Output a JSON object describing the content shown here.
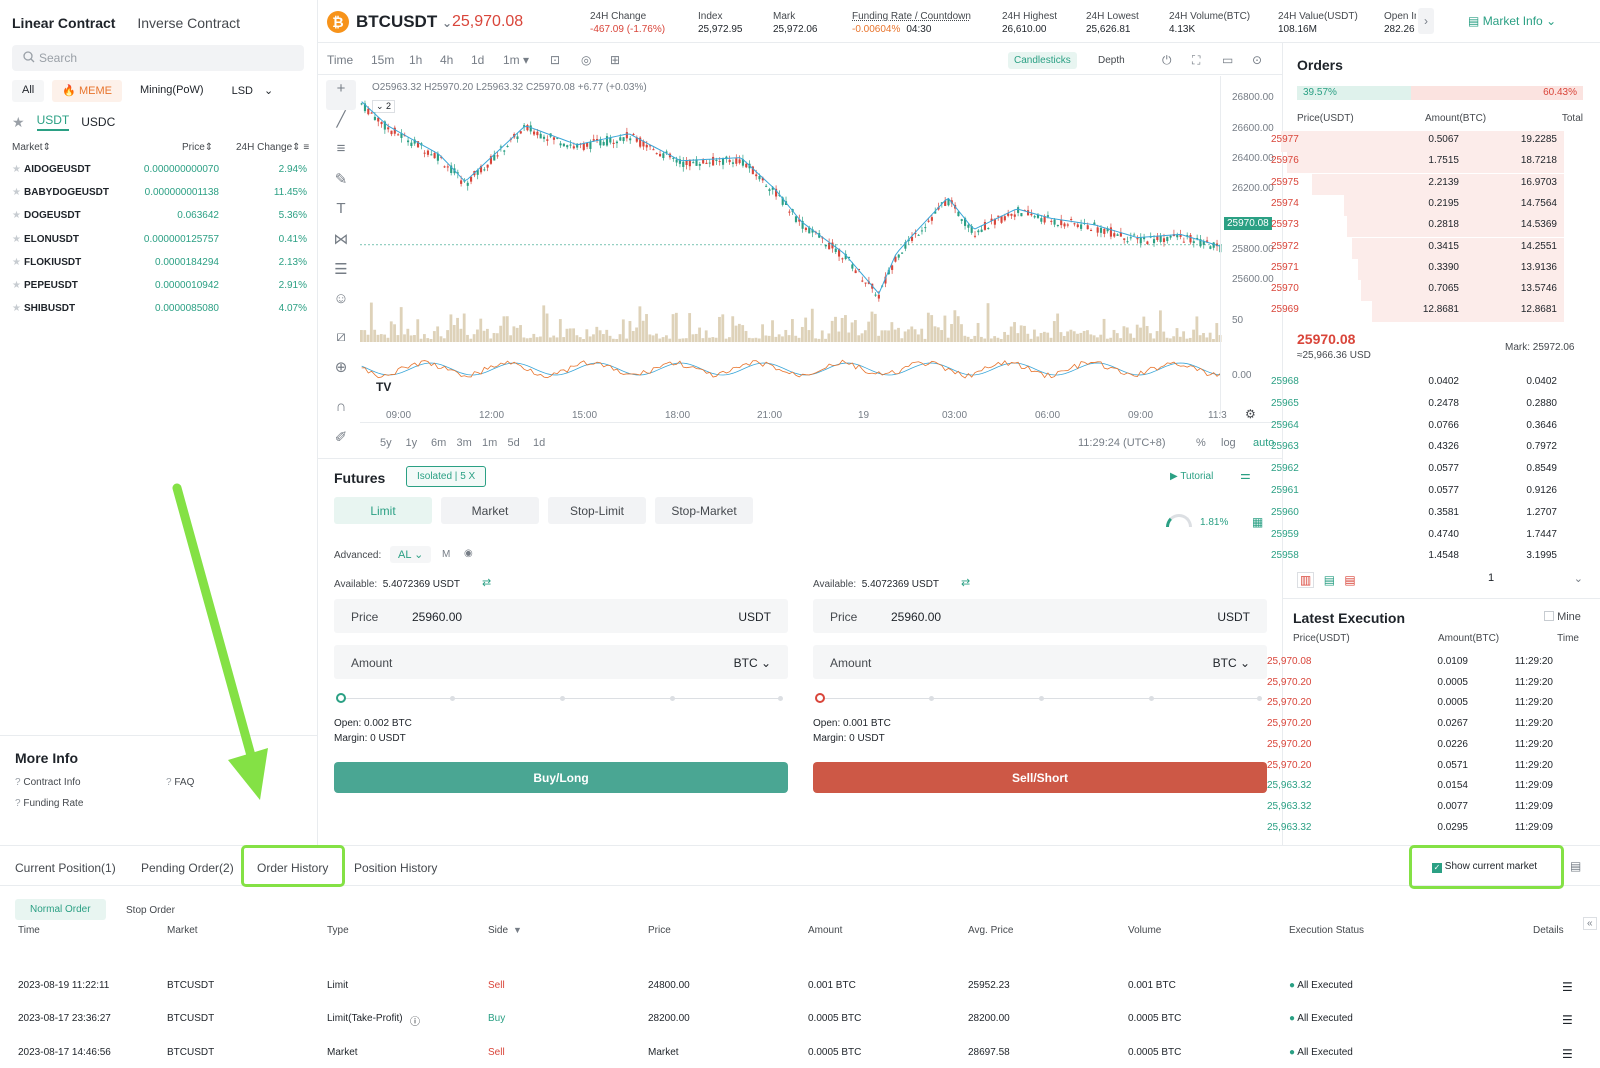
{
  "left": {
    "contract_tabs": [
      "Linear Contract",
      "Inverse Contract"
    ],
    "search_placeholder": "Search",
    "filters": [
      "All",
      "MEME",
      "Mining(PoW)",
      "LSD"
    ],
    "quote_assets": [
      "USDT",
      "USDC"
    ],
    "headers": {
      "market": "Market",
      "price": "Price",
      "change": "24H Change"
    },
    "markets": [
      {
        "name": "AIDOGEUSDT",
        "price": "0.000000000070",
        "change": "2.94%"
      },
      {
        "name": "BABYDOGEUSDT",
        "price": "0.000000001138",
        "change": "11.45%"
      },
      {
        "name": "DOGEUSDT",
        "price": "0.063642",
        "change": "5.36%"
      },
      {
        "name": "ELONUSDT",
        "price": "0.000000125757",
        "change": "0.41%"
      },
      {
        "name": "FLOKIUSDT",
        "price": "0.0000184294",
        "change": "2.13%"
      },
      {
        "name": "PEPEUSDT",
        "price": "0.0000010942",
        "change": "2.91%"
      },
      {
        "name": "SHIBUSDT",
        "price": "0.0000085080",
        "change": "4.07%"
      }
    ],
    "more_info": {
      "title": "More Info",
      "links": [
        "Contract Info",
        "FAQ",
        "Funding Rate"
      ]
    }
  },
  "header": {
    "symbol": "BTCUSDT",
    "last_price": "25,970.08",
    "stats": [
      {
        "label": "24H Change",
        "value": "-467.09 (-1.76%)"
      },
      {
        "label": "Index",
        "value": "25,972.95"
      },
      {
        "label": "Mark",
        "value": "25,972.06"
      },
      {
        "label": "Funding Rate / Countdown",
        "value": "-0.00604%",
        "value2": "04:30"
      },
      {
        "label": "24H Highest",
        "value": "26,610.00"
      },
      {
        "label": "24H Lowest",
        "value": "25,626.81"
      },
      {
        "label": "24H Volume(BTC)",
        "value": "4.13K"
      },
      {
        "label": "24H Value(USDT)",
        "value": "108.16M"
      },
      {
        "label": "Open Inte",
        "value": "282.26 B"
      }
    ],
    "market_info": "Market Info"
  },
  "chart_toolbar": {
    "intervals": [
      "Time",
      "15m",
      "1h",
      "4h",
      "1d",
      "1m"
    ],
    "views": [
      "Candlesticks",
      "Depth"
    ]
  },
  "chart": {
    "ohlc": "O25963.32 H25970.20 L25963.32 C25970.08 +6.77 (+0.03%)",
    "price_ticks": [
      "26800.00",
      "26600.00",
      "26400.00",
      "26200.00",
      "25800.00",
      "25600.00"
    ],
    "current_label": "25970.08",
    "volume_tick": "50",
    "osc_tick": "0.00",
    "time_ticks": [
      "09:00",
      "12:00",
      "15:00",
      "18:00",
      "21:00",
      "19",
      "03:00",
      "06:00",
      "09:00",
      "11:3"
    ],
    "ranges": [
      "5y",
      "1y",
      "6m",
      "3m",
      "1m",
      "5d",
      "1d"
    ],
    "clock": "11:29:24 (UTC+8)",
    "scale_opts": [
      "%",
      "log",
      "auto"
    ],
    "indicator_count": "2"
  },
  "futures": {
    "title": "Futures",
    "mode": "Isolated",
    "leverage": "5 X",
    "tutorial": "Tutorial",
    "gauge": "1.81%",
    "order_types": [
      "Limit",
      "Market",
      "Stop-Limit",
      "Stop-Market"
    ],
    "advanced_label": "Advanced:",
    "advanced_val": "AL",
    "m_label": "M",
    "buy": {
      "available_label": "Available:",
      "available": "5.4072369 USDT",
      "price_label": "Price",
      "price": "25960.00",
      "price_unit": "USDT",
      "amount_label": "Amount",
      "amount_unit": "BTC",
      "open": "Open: 0.002 BTC",
      "margin": "Margin: 0 USDT",
      "button": "Buy/Long"
    },
    "sell": {
      "available_label": "Available:",
      "available": "5.4072369 USDT",
      "price_label": "Price",
      "price": "25960.00",
      "price_unit": "USDT",
      "amount_label": "Amount",
      "amount_unit": "BTC",
      "open": "Open: 0.001 BTC",
      "margin": "Margin: 0 USDT",
      "button": "Sell/Short"
    }
  },
  "orderbook": {
    "title": "Orders",
    "buy_pct": "39.57%",
    "sell_pct": "60.43%",
    "headers": [
      "Price(USDT)",
      "Amount(BTC)",
      "Total"
    ],
    "asks": [
      {
        "p": "25977",
        "a": "0.5067",
        "t": "19.2285",
        "d": 0.99
      },
      {
        "p": "25976",
        "a": "1.7515",
        "t": "18.7218",
        "d": 0.97
      },
      {
        "p": "25975",
        "a": "2.2139",
        "t": "16.9703",
        "d": 0.88
      },
      {
        "p": "25974",
        "a": "0.2195",
        "t": "14.7564",
        "d": 0.77
      },
      {
        "p": "25973",
        "a": "0.2818",
        "t": "14.5369",
        "d": 0.76
      },
      {
        "p": "25972",
        "a": "0.3415",
        "t": "14.2551",
        "d": 0.74
      },
      {
        "p": "25971",
        "a": "0.3390",
        "t": "13.9136",
        "d": 0.72
      },
      {
        "p": "25970",
        "a": "0.7065",
        "t": "13.5746",
        "d": 0.71
      },
      {
        "p": "25969",
        "a": "12.8681",
        "t": "12.8681",
        "d": 0.67
      }
    ],
    "last": "25970.08",
    "last_usd": "≈25,966.36 USD",
    "mark": "Mark: 25972.06",
    "bids": [
      {
        "p": "25968",
        "a": "0.0402",
        "t": "0.0402"
      },
      {
        "p": "25965",
        "a": "0.2478",
        "t": "0.2880"
      },
      {
        "p": "25964",
        "a": "0.0766",
        "t": "0.3646"
      },
      {
        "p": "25963",
        "a": "0.4326",
        "t": "0.7972"
      },
      {
        "p": "25962",
        "a": "0.0577",
        "t": "0.8549"
      },
      {
        "p": "25961",
        "a": "0.0577",
        "t": "0.9126"
      },
      {
        "p": "25960",
        "a": "0.3581",
        "t": "1.2707"
      },
      {
        "p": "25959",
        "a": "0.4740",
        "t": "1.7447"
      },
      {
        "p": "25958",
        "a": "1.4548",
        "t": "3.1995"
      }
    ],
    "precision": "1"
  },
  "execution": {
    "title": "Latest Execution",
    "mine": "Mine",
    "headers": [
      "Price(USDT)",
      "Amount(BTC)",
      "Time"
    ],
    "rows": [
      {
        "p": "25,970.08",
        "a": "0.0109",
        "t": "11:29:20",
        "s": "sell"
      },
      {
        "p": "25,970.20",
        "a": "0.0005",
        "t": "11:29:20",
        "s": "sell"
      },
      {
        "p": "25,970.20",
        "a": "0.0005",
        "t": "11:29:20",
        "s": "sell"
      },
      {
        "p": "25,970.20",
        "a": "0.0267",
        "t": "11:29:20",
        "s": "sell"
      },
      {
        "p": "25,970.20",
        "a": "0.0226",
        "t": "11:29:20",
        "s": "sell"
      },
      {
        "p": "25,970.20",
        "a": "0.0571",
        "t": "11:29:20",
        "s": "sell"
      },
      {
        "p": "25,963.32",
        "a": "0.0154",
        "t": "11:29:09",
        "s": "buy"
      },
      {
        "p": "25,963.32",
        "a": "0.0077",
        "t": "11:29:09",
        "s": "buy"
      },
      {
        "p": "25,963.32",
        "a": "0.0295",
        "t": "11:29:09",
        "s": "buy"
      }
    ]
  },
  "bottom": {
    "tabs": [
      "Current Position(1)",
      "Pending Order(2)",
      "Order History",
      "Position History"
    ],
    "show_current": "Show current market",
    "subtabs": [
      "Normal Order",
      "Stop Order"
    ],
    "headers": [
      "Time",
      "Market",
      "Type",
      "Side",
      "Price",
      "Amount",
      "Avg. Price",
      "Volume",
      "Execution Status",
      "Details"
    ],
    "rows": [
      {
        "time": "2023-08-19 11:22:11",
        "market": "BTCUSDT",
        "type": "Limit",
        "side": "Sell",
        "price": "24800.00",
        "amount": "0.001 BTC",
        "avg": "25952.23",
        "volume": "0.001 BTC",
        "status": "All Executed"
      },
      {
        "time": "2023-08-17 23:36:27",
        "market": "BTCUSDT",
        "type": "Limit(Take-Profit)",
        "side": "Buy",
        "price": "28200.00",
        "amount": "0.0005 BTC",
        "avg": "28200.00",
        "volume": "0.0005 BTC",
        "status": "All Executed"
      },
      {
        "time": "2023-08-17 14:46:56",
        "market": "BTCUSDT",
        "type": "Market",
        "side": "Sell",
        "price": "Market",
        "amount": "0.0005 BTC",
        "avg": "28697.58",
        "volume": "0.0005 BTC",
        "status": "All Executed"
      }
    ]
  },
  "colors": {
    "green": "#2ba084",
    "red": "#d9453a",
    "highlight": "#84e145",
    "orange": "#e8742c"
  }
}
